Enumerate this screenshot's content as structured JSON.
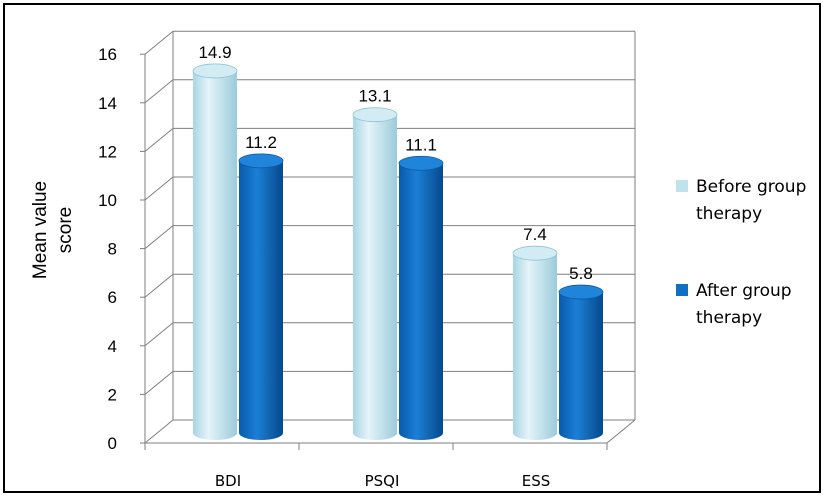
{
  "chart_data": {
    "type": "bar",
    "categories": [
      "BDI",
      "PSQI",
      "ESS"
    ],
    "series": [
      {
        "name": "Before group therapy",
        "values": [
          14.9,
          13.1,
          7.4
        ],
        "color": "#bfe3ee"
      },
      {
        "name": "After group therapy",
        "values": [
          11.2,
          11.1,
          5.8
        ],
        "color": "#0f6fc6"
      }
    ],
    "data_labels": [
      [
        "14.9",
        "13.1",
        "7.4"
      ],
      [
        "11.2",
        "11.1",
        "5.8"
      ]
    ],
    "ylabel_lines": [
      "Mean  value",
      "score"
    ],
    "yticks": [
      "0",
      "2",
      "4",
      "6",
      "8",
      "10",
      "12",
      "14",
      "16"
    ],
    "ylim": [
      0,
      16
    ],
    "grid": true,
    "legend_position": "right",
    "legend": [
      {
        "lines": [
          "Before group",
          "therapy"
        ]
      },
      {
        "lines": [
          "After group",
          "therapy"
        ]
      }
    ]
  }
}
